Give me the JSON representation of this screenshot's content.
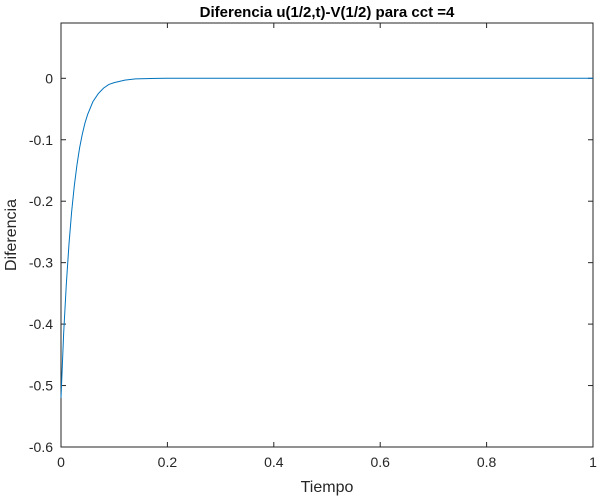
{
  "chart_data": {
    "type": "line",
    "title": "Diferencia u(1/2,t)-V(1/2) para cct =4",
    "xlabel": "Tiempo",
    "ylabel": "Diferencia",
    "xlim": [
      0,
      1
    ],
    "ylim": [
      -0.6,
      0.09
    ],
    "grid": false,
    "legend": "none",
    "x_ticks": [
      "0",
      "0.2",
      "0.4",
      "0.6",
      "0.8",
      "1"
    ],
    "x_tick_values": [
      0,
      0.2,
      0.4,
      0.6,
      0.8,
      1
    ],
    "y_ticks": [
      "0",
      "-0.1",
      "-0.2",
      "-0.3",
      "-0.4",
      "-0.5",
      "-0.6"
    ],
    "y_tick_values": [
      0,
      -0.1,
      -0.2,
      -0.3,
      -0.4,
      -0.5,
      -0.6
    ],
    "series": [
      {
        "color": "#0072bd",
        "x": [
          0,
          0.005,
          0.01,
          0.015,
          0.02,
          0.025,
          0.03,
          0.035,
          0.04,
          0.045,
          0.05,
          0.06,
          0.07,
          0.08,
          0.09,
          0.1,
          0.12,
          0.14,
          0.16,
          0.18,
          0.2,
          0.3,
          0.4,
          0.5,
          0.6,
          0.7,
          0.8,
          0.9,
          1
        ],
        "y": [
          -0.52,
          -0.415,
          -0.335,
          -0.27,
          -0.217,
          -0.175,
          -0.141,
          -0.113,
          -0.091,
          -0.073,
          -0.059,
          -0.038,
          -0.025,
          -0.016,
          -0.01,
          -0.007,
          -0.003,
          -0.001,
          -0.0005,
          -0.0002,
          0,
          0,
          0,
          0,
          0,
          0,
          0,
          0,
          0
        ]
      }
    ]
  }
}
